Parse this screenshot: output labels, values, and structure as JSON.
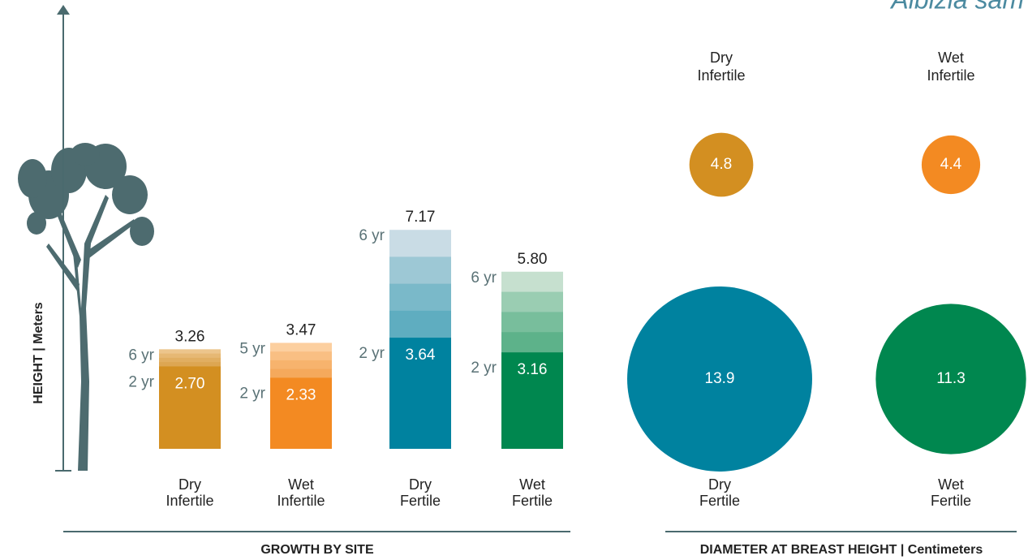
{
  "chart_data": [
    {
      "type": "growth-bar",
      "title": "GROWTH BY SITE",
      "y_label": "HEIGHT  |  Meters",
      "header": "Albizia sam",
      "categories": [
        [
          "Dry",
          "Infertile"
        ],
        [
          "Wet",
          "Infertile"
        ],
        [
          "Dry",
          "Fertile"
        ],
        [
          "Wet",
          "Fertile"
        ]
      ],
      "series": [
        {
          "values": [
            2.7,
            2.33,
            3.64,
            3.16
          ],
          "value_labels": [
            "2.70",
            "2.33",
            "3.64",
            "3.16"
          ],
          "age_labels": [
            "2 yr",
            "2 yr",
            "2 yr",
            "2 yr"
          ]
        },
        {
          "values": [
            3.26,
            3.47,
            7.17,
            5.8
          ],
          "value_labels": [
            "3.26",
            "3.47",
            "7.17",
            "5.80"
          ],
          "age_labels": [
            "6 yr",
            "5 yr",
            "6 yr",
            "6 yr"
          ]
        }
      ],
      "colors": [
        "#d38f21",
        "#f38a22",
        "#00829f",
        "#00874f"
      ],
      "light_colors": [
        "#ecc58c",
        "#fccf9f",
        "#c9dce5",
        "#c6e0cf"
      ],
      "ylim": [
        0,
        8
      ]
    },
    {
      "type": "bubble",
      "title": "DIAMETER AT BREAST HEIGHT | Centimeters",
      "categories": [
        [
          "Dry",
          "Infertile"
        ],
        [
          "Wet",
          "Infertile"
        ],
        [
          "Dry",
          "Fertile"
        ],
        [
          "Wet",
          "Fertile"
        ]
      ],
      "values": [
        4.8,
        4.4,
        13.9,
        11.3
      ],
      "colors": [
        "#d38f21",
        "#f38a22",
        "#00829f",
        "#00874f"
      ]
    }
  ]
}
